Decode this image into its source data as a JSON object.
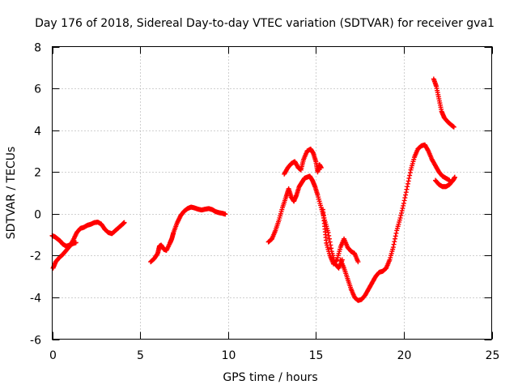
{
  "chart_data": {
    "type": "scatter",
    "title": "Day 176 of 2018, Sidereal Day-to-day VTEC variation (SDTVAR) for receiver gva1",
    "xlabel": "GPS time / hours",
    "ylabel": "SDTVAR / TECUs",
    "xlim": [
      0,
      25
    ],
    "ylim": [
      -6,
      8
    ],
    "x_ticks": [
      0,
      5,
      10,
      15,
      20,
      25
    ],
    "y_ticks": [
      -6,
      -4,
      -2,
      0,
      2,
      4,
      6,
      8
    ],
    "x_tick_labels": [
      "0",
      "5",
      "10",
      "15",
      "20",
      "25"
    ],
    "y_tick_labels": [
      "-6",
      "-4",
      "-2",
      "0",
      "2",
      "4",
      "6",
      "8"
    ],
    "grid": true,
    "legend": "none",
    "marker": "plus",
    "series_color": "#ff0000",
    "series": [
      {
        "points": [
          [
            0.0,
            -1.05
          ],
          [
            0.15,
            -1.1
          ],
          [
            0.3,
            -1.2
          ],
          [
            0.45,
            -1.3
          ],
          [
            0.6,
            -1.45
          ],
          [
            0.8,
            -1.55
          ],
          [
            1.0,
            -1.5
          ],
          [
            1.2,
            -1.42
          ],
          [
            1.35,
            -1.38
          ],
          [
            0.05,
            -2.6
          ],
          [
            0.2,
            -2.3
          ],
          [
            0.4,
            -2.1
          ],
          [
            0.6,
            -1.95
          ],
          [
            0.8,
            -1.75
          ],
          [
            1.0,
            -1.55
          ],
          [
            1.2,
            -1.25
          ],
          [
            1.4,
            -0.9
          ],
          [
            1.6,
            -0.7
          ],
          [
            1.8,
            -0.65
          ],
          [
            2.0,
            -0.55
          ],
          [
            2.2,
            -0.5
          ],
          [
            2.4,
            -0.42
          ],
          [
            2.6,
            -0.4
          ],
          [
            2.8,
            -0.5
          ],
          [
            3.0,
            -0.75
          ],
          [
            3.2,
            -0.9
          ],
          [
            3.4,
            -0.95
          ],
          [
            3.6,
            -0.8
          ],
          [
            3.8,
            -0.65
          ],
          [
            4.0,
            -0.5
          ],
          [
            4.1,
            -0.42
          ]
        ]
      },
      {
        "points": [
          [
            5.6,
            -2.3
          ],
          [
            5.8,
            -2.15
          ],
          [
            6.0,
            -1.9
          ],
          [
            6.1,
            -1.55
          ],
          [
            6.2,
            -1.5
          ],
          [
            6.35,
            -1.7
          ],
          [
            6.5,
            -1.75
          ],
          [
            6.7,
            -1.4
          ],
          [
            6.8,
            -1.2
          ],
          [
            6.9,
            -0.9
          ],
          [
            7.1,
            -0.45
          ],
          [
            7.3,
            -0.1
          ],
          [
            7.5,
            0.12
          ],
          [
            7.7,
            0.25
          ],
          [
            7.9,
            0.32
          ],
          [
            8.1,
            0.28
          ],
          [
            8.3,
            0.22
          ],
          [
            8.5,
            0.18
          ],
          [
            8.7,
            0.22
          ],
          [
            8.9,
            0.25
          ],
          [
            9.1,
            0.2
          ],
          [
            9.3,
            0.1
          ],
          [
            9.5,
            0.05
          ],
          [
            9.7,
            0.02
          ],
          [
            9.85,
            -0.02
          ]
        ]
      },
      {
        "points": [
          [
            12.3,
            -1.35
          ],
          [
            12.5,
            -1.2
          ],
          [
            12.7,
            -0.8
          ],
          [
            12.9,
            -0.3
          ],
          [
            13.1,
            0.3
          ],
          [
            13.3,
            0.8
          ],
          [
            13.45,
            1.2
          ],
          [
            13.6,
            0.8
          ],
          [
            13.75,
            0.6
          ],
          [
            13.9,
            0.9
          ],
          [
            14.05,
            1.3
          ],
          [
            14.2,
            1.5
          ],
          [
            14.35,
            1.7
          ],
          [
            14.5,
            1.75
          ],
          [
            14.65,
            1.8
          ],
          [
            14.8,
            1.6
          ],
          [
            14.95,
            1.3
          ],
          [
            15.1,
            0.9
          ],
          [
            15.3,
            0.3
          ],
          [
            15.5,
            -0.3
          ],
          [
            15.7,
            -0.9
          ],
          [
            15.9,
            -1.8
          ],
          [
            16.1,
            -2.4
          ],
          [
            16.3,
            -2.6
          ],
          [
            16.5,
            -2.2
          ],
          [
            13.2,
            1.9
          ],
          [
            13.4,
            2.2
          ],
          [
            13.6,
            2.4
          ],
          [
            13.8,
            2.5
          ],
          [
            14.0,
            2.2
          ],
          [
            14.15,
            2.1
          ],
          [
            14.3,
            2.6
          ],
          [
            14.5,
            3.0
          ],
          [
            14.7,
            3.1
          ],
          [
            14.85,
            2.9
          ],
          [
            15.0,
            2.5
          ],
          [
            15.1,
            2.0
          ],
          [
            15.2,
            2.35
          ],
          [
            15.3,
            2.2
          ],
          [
            15.4,
            0.2
          ],
          [
            15.5,
            -0.6
          ],
          [
            15.6,
            -1.4
          ],
          [
            15.8,
            -2.0
          ],
          [
            16.0,
            -2.4
          ],
          [
            16.2,
            -2.2
          ],
          [
            16.4,
            -1.6
          ],
          [
            16.6,
            -1.2
          ],
          [
            16.8,
            -1.6
          ],
          [
            17.0,
            -1.8
          ],
          [
            17.2,
            -1.9
          ],
          [
            17.4,
            -2.3
          ],
          [
            16.4,
            -2.2
          ],
          [
            16.6,
            -2.6
          ],
          [
            16.8,
            -3.1
          ],
          [
            17.0,
            -3.6
          ],
          [
            17.2,
            -4.0
          ],
          [
            17.4,
            -4.15
          ],
          [
            17.6,
            -4.1
          ],
          [
            17.8,
            -3.9
          ],
          [
            18.0,
            -3.6
          ],
          [
            18.2,
            -3.3
          ],
          [
            18.4,
            -3.0
          ],
          [
            18.6,
            -2.8
          ],
          [
            18.8,
            -2.75
          ],
          [
            19.0,
            -2.6
          ],
          [
            19.2,
            -2.2
          ],
          [
            19.4,
            -1.6
          ],
          [
            19.6,
            -0.8
          ],
          [
            19.8,
            -0.2
          ],
          [
            20.0,
            0.5
          ],
          [
            20.2,
            1.3
          ],
          [
            20.4,
            2.1
          ],
          [
            20.6,
            2.7
          ],
          [
            20.8,
            3.1
          ],
          [
            21.0,
            3.25
          ],
          [
            21.2,
            3.3
          ],
          [
            21.4,
            3.0
          ],
          [
            21.6,
            2.6
          ],
          [
            21.8,
            2.3
          ],
          [
            22.0,
            2.0
          ],
          [
            22.2,
            1.8
          ],
          [
            22.4,
            1.7
          ],
          [
            22.6,
            1.6
          ],
          [
            21.8,
            1.6
          ],
          [
            22.0,
            1.4
          ],
          [
            22.2,
            1.3
          ],
          [
            22.4,
            1.3
          ],
          [
            22.6,
            1.4
          ],
          [
            22.8,
            1.6
          ],
          [
            22.9,
            1.75
          ]
        ]
      },
      {
        "points": [
          [
            21.7,
            6.45
          ],
          [
            21.85,
            6.1
          ],
          [
            22.0,
            5.5
          ],
          [
            22.15,
            4.9
          ],
          [
            22.3,
            4.6
          ],
          [
            22.5,
            4.4
          ],
          [
            22.7,
            4.25
          ],
          [
            22.85,
            4.15
          ]
        ]
      }
    ]
  }
}
